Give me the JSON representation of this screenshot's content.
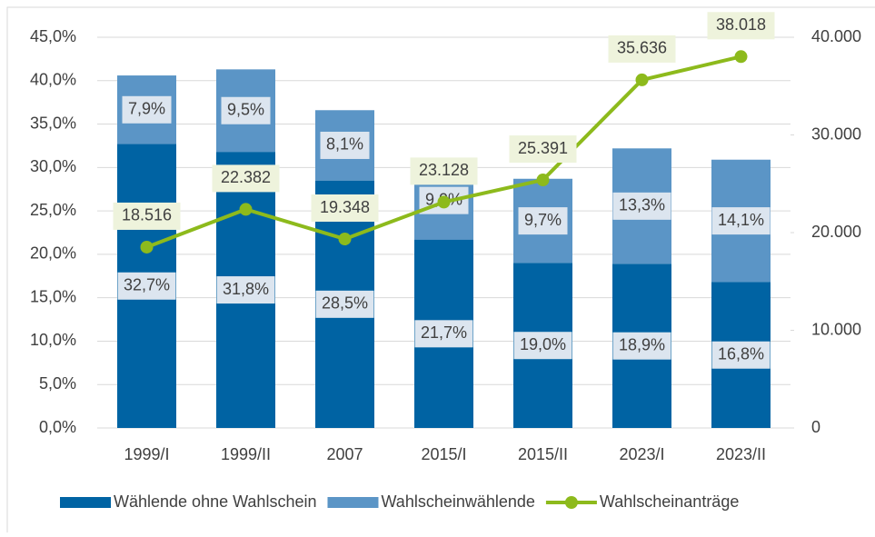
{
  "chart_data": {
    "type": "bar-line",
    "categories": [
      "1999/I",
      "1999/II",
      "2007",
      "2015/I",
      "2015/II",
      "2023/I",
      "2023/II"
    ],
    "series": [
      {
        "name": "Wählende ohne Wahlschein",
        "color": "#0063a3",
        "type": "bar",
        "values": [
          32.7,
          31.8,
          28.5,
          21.7,
          19.0,
          18.9,
          16.8
        ],
        "value_labels": [
          "32,7%",
          "31,8%",
          "28,5%",
          "21,7%",
          "19,0%",
          "18,9%",
          "16,8%"
        ]
      },
      {
        "name": "Wahlscheinwählende",
        "color": "#5b95c6",
        "type": "bar",
        "values": [
          7.9,
          9.5,
          8.1,
          9.0,
          9.7,
          13.3,
          14.1
        ],
        "value_labels": [
          "7,9%",
          "9,5%",
          "8,1%",
          "9,0%",
          "9,7%",
          "13,3%",
          "14,1%"
        ]
      },
      {
        "name": "Wahlscheinanträge",
        "color": "#8dba1c",
        "type": "line",
        "axis": "y2",
        "values": [
          18516,
          22382,
          19348,
          23128,
          25391,
          35636,
          38018
        ],
        "value_labels": [
          "18.516",
          "22.382",
          "19.348",
          "23.128",
          "25.391",
          "35.636",
          "38.018"
        ]
      }
    ],
    "ylim": [
      0,
      45
    ],
    "yticks": [
      {
        "value": 0,
        "label": "0,0%"
      },
      {
        "value": 5,
        "label": "5,0%"
      },
      {
        "value": 10,
        "label": "10,0%"
      },
      {
        "value": 15,
        "label": "15,0%"
      },
      {
        "value": 20,
        "label": "20,0%"
      },
      {
        "value": 25,
        "label": "25,0%"
      },
      {
        "value": 30,
        "label": "30,0%"
      },
      {
        "value": 35,
        "label": "35,0%"
      },
      {
        "value": 40,
        "label": "40,0%"
      },
      {
        "value": 45,
        "label": "45,0%"
      }
    ],
    "y2lim": [
      0,
      40000
    ],
    "y2ticks": [
      0,
      {
        "value": 10000,
        "label": "10.000"
      },
      {
        "value": 20000,
        "label": "20.000"
      },
      {
        "value": 30000,
        "label": "30.000"
      },
      {
        "value": 40000,
        "label": "40.000"
      }
    ],
    "grid": true,
    "legend": "bottom"
  }
}
